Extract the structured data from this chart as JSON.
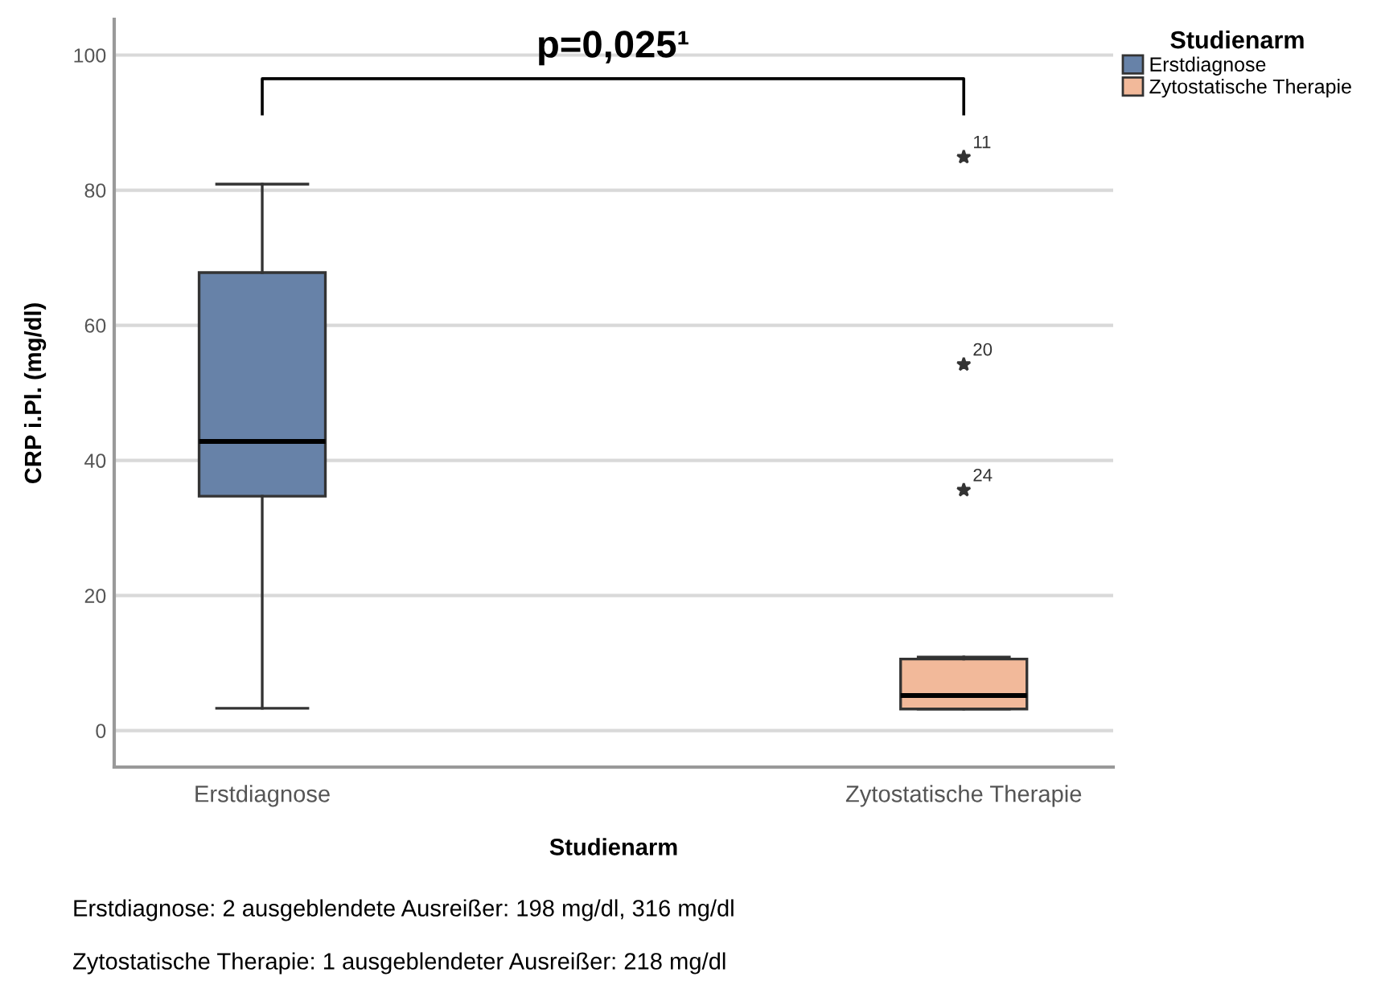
{
  "chart_data": {
    "type": "box",
    "ylabel": "CRP i.Pl. (mg/dl)",
    "xlabel": "Studienarm",
    "legend_title": "Studienarm",
    "categories": [
      "Erstdiagnose",
      "Zytostatische Therapie"
    ],
    "series": [
      {
        "name": "Erstdiagnose",
        "color": "#6782a8",
        "boxes": [
          {
            "low": 3.3,
            "q1": 34.7,
            "median": 42.8,
            "q3": 67.8,
            "high": 80.9
          },
          null
        ]
      },
      {
        "name": "Zytostatische Therapie",
        "color": "#f2b99a",
        "boxes": [
          null,
          {
            "low": 3.2,
            "q1": 3.2,
            "median": 5.2,
            "q3": 10.6,
            "high": 10.9,
            "outliers": [
              84.9,
              54.2,
              35.6
            ]
          }
        ]
      }
    ],
    "ylim": [
      -5.4,
      105.3
    ],
    "yticks": [
      0,
      20,
      40,
      60,
      80,
      100
    ],
    "grid": "y",
    "legend": "top right",
    "marker": "star",
    "annotations": [
      "p=0,025¹",
      "11",
      "20",
      "24",
      "Erstdiagnose: 2 ausgeblendete Ausreißer: 198 mg/dl, 316 mg/dl",
      "Zytostatische Therapie: 1 ausgeblendeter Ausreißer: 218 mg/dl"
    ]
  }
}
